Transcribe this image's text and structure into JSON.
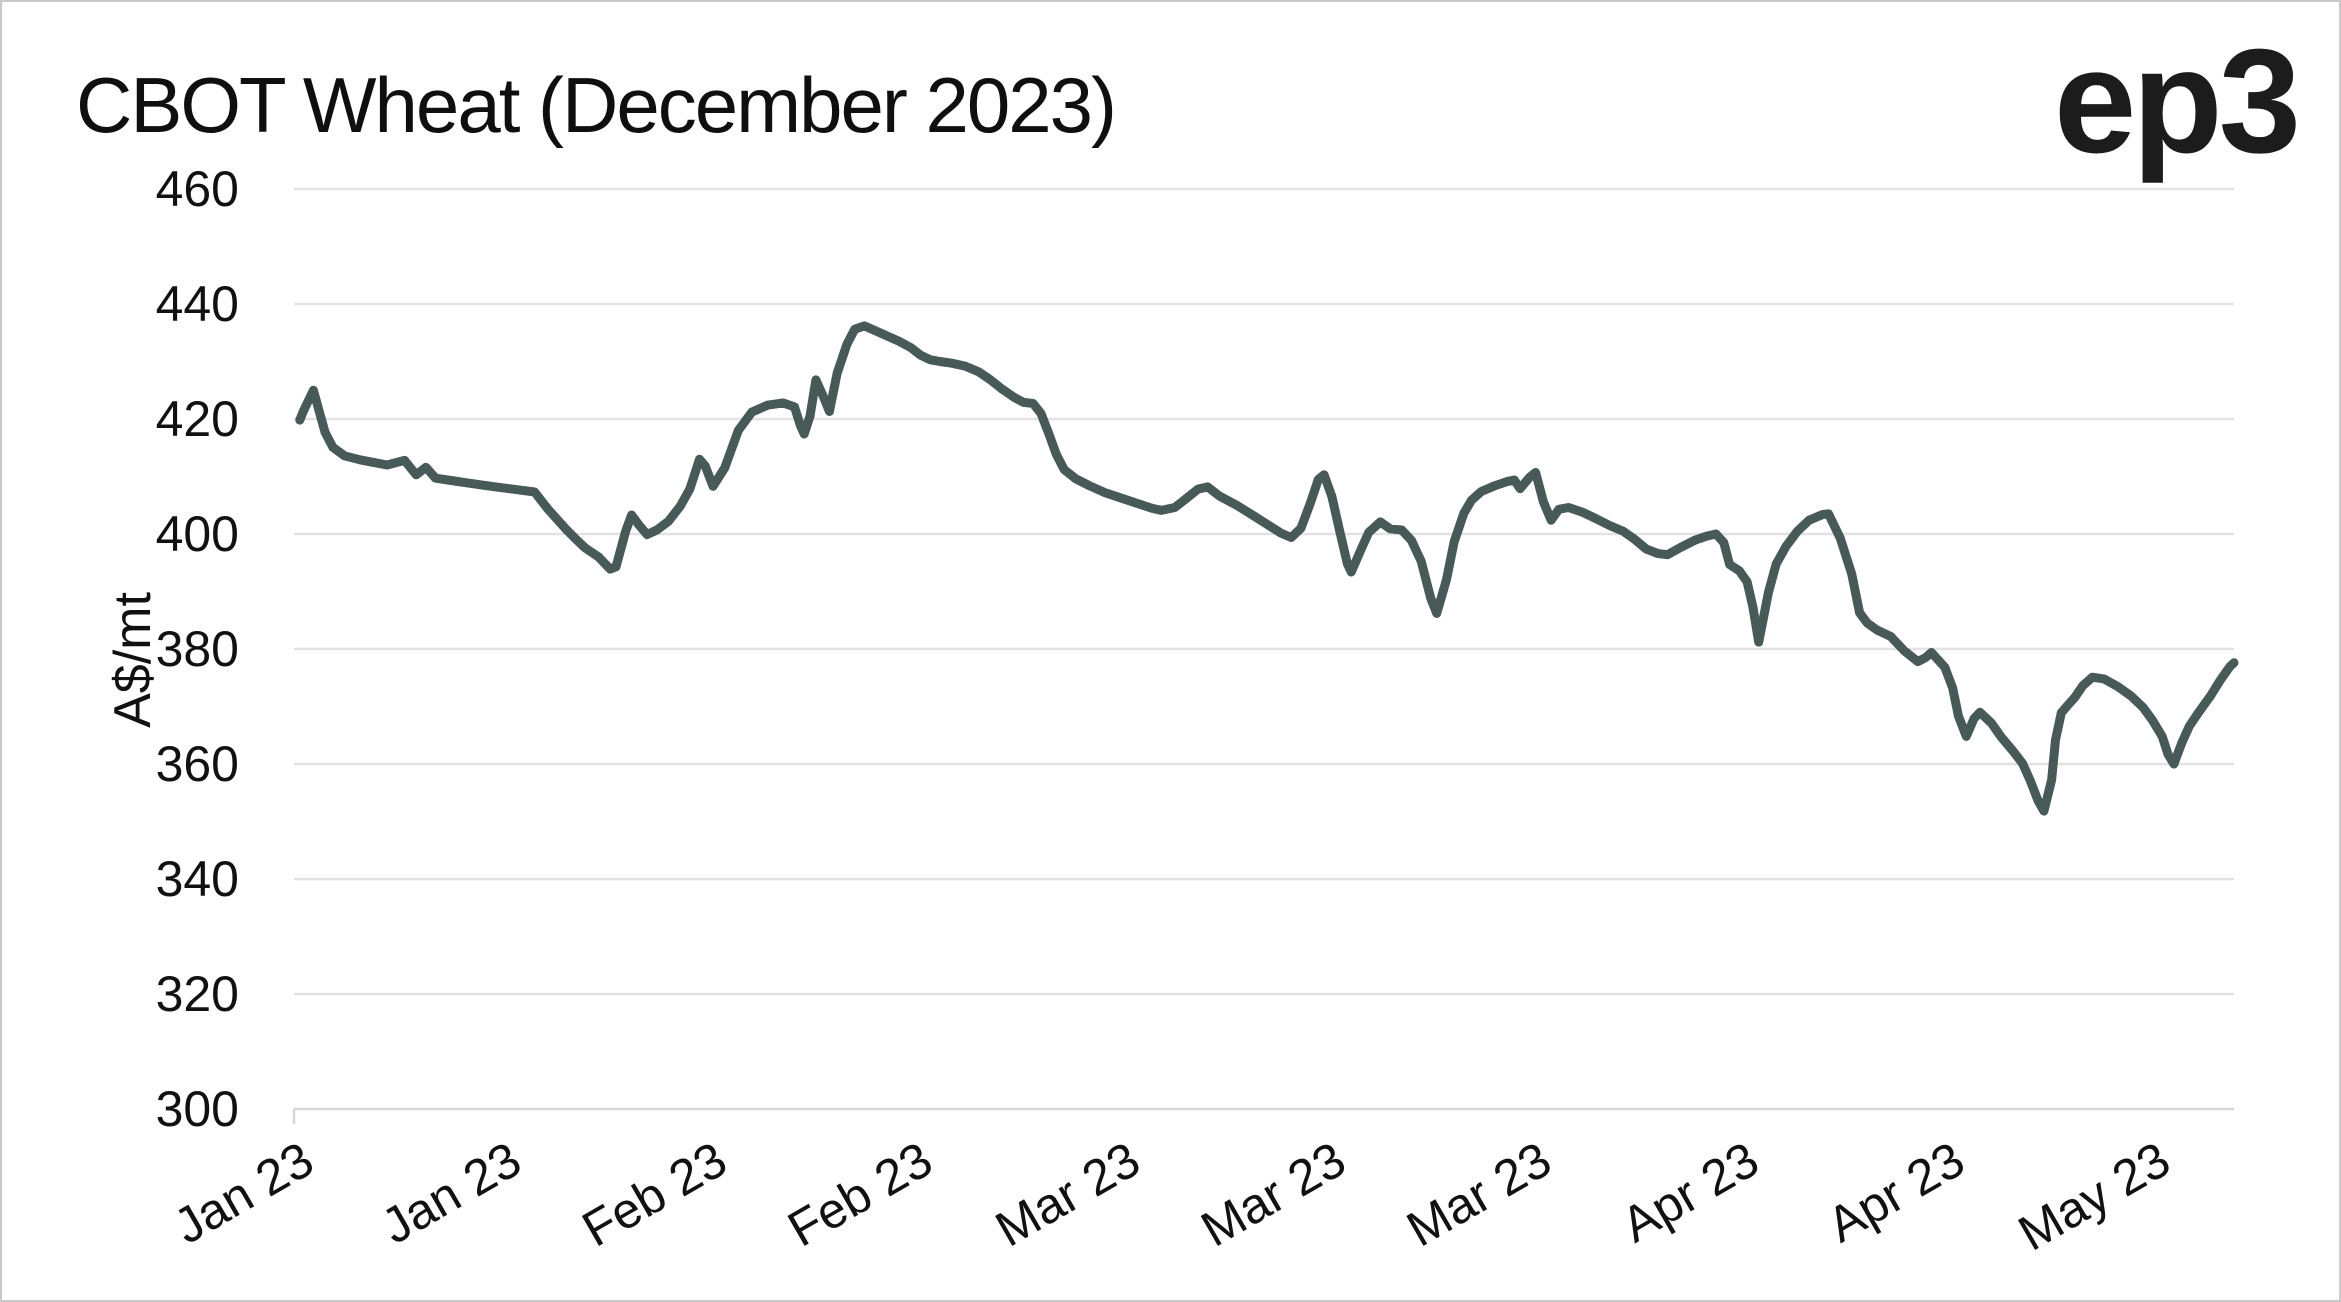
{
  "title": "CBOT Wheat (December 2023)",
  "logo_text": "ep3",
  "colors": {
    "line": "#475a58",
    "grid": "#e2e2e2",
    "axis": "#d6d6d6",
    "text": "#111111",
    "title_text": "#0f0f0f",
    "logo_text": "#1c1c1c",
    "background": "#ffffff",
    "frame": "#c9c9c9"
  },
  "chart_data": {
    "type": "line",
    "title": "CBOT Wheat (December 2023)",
    "xlabel": "",
    "ylabel": "A$/mt",
    "ylim": [
      300,
      460
    ],
    "y_ticks": [
      300,
      320,
      340,
      360,
      380,
      400,
      420,
      440,
      460
    ],
    "grid": "horizontal only",
    "legend": "none",
    "x_axis": {
      "tick_labels": [
        "Jan 23",
        "Jan 23",
        "Feb 23",
        "Feb 23",
        "Mar 23",
        "Mar 23",
        "Mar 23",
        "Apr 23",
        "Apr 23",
        "May 23"
      ],
      "tick_positions_pct": [
        1.5,
        12.2,
        22.8,
        33.4,
        44.1,
        54.7,
        65.3,
        76.0,
        86.6,
        97.2
      ],
      "label_rotation_deg": -30
    },
    "series": [
      {
        "name": "CBOT Wheat December 2023 price (A$/mt)",
        "points_format": "[x percent across plot, value A$/mt]",
        "points": [
          [
            0.3,
            419.8
          ],
          [
            0.5,
            421.5
          ],
          [
            1.0,
            425.0
          ],
          [
            1.6,
            417.7
          ],
          [
            2.0,
            415.1
          ],
          [
            2.6,
            413.6
          ],
          [
            3.4,
            412.9
          ],
          [
            4.0,
            412.5
          ],
          [
            4.8,
            412.0
          ],
          [
            5.7,
            412.8
          ],
          [
            6.3,
            410.3
          ],
          [
            6.8,
            411.6
          ],
          [
            7.3,
            409.7
          ],
          [
            8.1,
            409.3
          ],
          [
            8.9,
            408.9
          ],
          [
            9.7,
            408.5
          ],
          [
            10.6,
            408.1
          ],
          [
            11.5,
            407.7
          ],
          [
            12.4,
            407.3
          ],
          [
            13.1,
            404.3
          ],
          [
            14.0,
            400.9
          ],
          [
            14.5,
            399.2
          ],
          [
            15.0,
            397.6
          ],
          [
            15.7,
            396.0
          ],
          [
            16.3,
            393.9
          ],
          [
            16.6,
            394.3
          ],
          [
            17.1,
            400.5
          ],
          [
            17.4,
            403.3
          ],
          [
            17.8,
            401.5
          ],
          [
            18.2,
            399.9
          ],
          [
            18.7,
            400.7
          ],
          [
            19.3,
            402.2
          ],
          [
            19.9,
            404.8
          ],
          [
            20.4,
            407.8
          ],
          [
            20.9,
            413.0
          ],
          [
            21.2,
            411.8
          ],
          [
            21.6,
            408.3
          ],
          [
            22.2,
            411.5
          ],
          [
            22.9,
            418.0
          ],
          [
            23.6,
            421.2
          ],
          [
            24.4,
            422.4
          ],
          [
            25.2,
            422.8
          ],
          [
            25.8,
            422.1
          ],
          [
            26.1,
            418.9
          ],
          [
            26.3,
            417.4
          ],
          [
            26.6,
            420.5
          ],
          [
            26.9,
            426.8
          ],
          [
            27.3,
            423.8
          ],
          [
            27.6,
            421.3
          ],
          [
            28.0,
            428.0
          ],
          [
            28.5,
            433.0
          ],
          [
            28.9,
            435.6
          ],
          [
            29.4,
            436.2
          ],
          [
            30.0,
            435.3
          ],
          [
            30.6,
            434.4
          ],
          [
            31.2,
            433.5
          ],
          [
            31.8,
            432.4
          ],
          [
            32.3,
            431.1
          ],
          [
            32.8,
            430.3
          ],
          [
            33.3,
            430.0
          ],
          [
            33.9,
            429.7
          ],
          [
            34.6,
            429.2
          ],
          [
            35.3,
            428.2
          ],
          [
            35.9,
            426.8
          ],
          [
            36.5,
            425.2
          ],
          [
            37.1,
            423.8
          ],
          [
            37.6,
            422.9
          ],
          [
            38.1,
            422.7
          ],
          [
            38.5,
            421.0
          ],
          [
            38.9,
            417.5
          ],
          [
            39.3,
            413.8
          ],
          [
            39.7,
            411.2
          ],
          [
            40.3,
            409.6
          ],
          [
            41.0,
            408.4
          ],
          [
            41.8,
            407.2
          ],
          [
            42.6,
            406.3
          ],
          [
            43.4,
            405.4
          ],
          [
            44.2,
            404.5
          ],
          [
            44.7,
            404.1
          ],
          [
            45.4,
            404.6
          ],
          [
            46.0,
            406.2
          ],
          [
            46.6,
            407.8
          ],
          [
            47.1,
            408.2
          ],
          [
            47.7,
            406.6
          ],
          [
            48.6,
            405.0
          ],
          [
            49.4,
            403.3
          ],
          [
            50.2,
            401.6
          ],
          [
            50.9,
            400.1
          ],
          [
            51.4,
            399.4
          ],
          [
            51.9,
            401.0
          ],
          [
            52.4,
            405.5
          ],
          [
            52.8,
            409.5
          ],
          [
            53.1,
            410.3
          ],
          [
            53.5,
            406.5
          ],
          [
            53.9,
            400.5
          ],
          [
            54.3,
            394.8
          ],
          [
            54.5,
            393.4
          ],
          [
            55.0,
            397.3
          ],
          [
            55.4,
            400.3
          ],
          [
            56.0,
            402.1
          ],
          [
            56.5,
            400.9
          ],
          [
            57.1,
            400.7
          ],
          [
            57.6,
            398.9
          ],
          [
            58.1,
            395.3
          ],
          [
            58.6,
            388.8
          ],
          [
            58.9,
            386.2
          ],
          [
            59.4,
            392.0
          ],
          [
            59.8,
            398.6
          ],
          [
            60.3,
            403.6
          ],
          [
            60.7,
            405.9
          ],
          [
            61.2,
            407.4
          ],
          [
            61.9,
            408.4
          ],
          [
            62.5,
            409.1
          ],
          [
            62.9,
            409.4
          ],
          [
            63.2,
            407.9
          ],
          [
            63.7,
            409.9
          ],
          [
            64.0,
            410.7
          ],
          [
            64.4,
            405.6
          ],
          [
            64.8,
            402.4
          ],
          [
            65.2,
            404.3
          ],
          [
            65.7,
            404.6
          ],
          [
            66.4,
            403.8
          ],
          [
            67.1,
            402.7
          ],
          [
            67.8,
            401.5
          ],
          [
            68.5,
            400.5
          ],
          [
            69.1,
            399.1
          ],
          [
            69.7,
            397.4
          ],
          [
            70.3,
            396.6
          ],
          [
            70.8,
            396.4
          ],
          [
            71.5,
            397.7
          ],
          [
            72.2,
            398.9
          ],
          [
            72.8,
            399.6
          ],
          [
            73.3,
            400.0
          ],
          [
            73.7,
            398.5
          ],
          [
            74.0,
            394.7
          ],
          [
            74.5,
            393.6
          ],
          [
            74.9,
            391.7
          ],
          [
            75.2,
            387.3
          ],
          [
            75.5,
            381.2
          ],
          [
            76.0,
            389.8
          ],
          [
            76.4,
            394.8
          ],
          [
            76.9,
            397.8
          ],
          [
            77.5,
            400.5
          ],
          [
            78.1,
            402.4
          ],
          [
            78.8,
            403.4
          ],
          [
            79.1,
            403.5
          ],
          [
            79.7,
            399.3
          ],
          [
            80.3,
            393.0
          ],
          [
            80.7,
            386.3
          ],
          [
            81.1,
            384.5
          ],
          [
            81.6,
            383.3
          ],
          [
            82.3,
            382.2
          ],
          [
            83.0,
            379.7
          ],
          [
            83.7,
            377.8
          ],
          [
            84.1,
            378.5
          ],
          [
            84.4,
            379.4
          ],
          [
            85.1,
            376.8
          ],
          [
            85.5,
            373.2
          ],
          [
            85.8,
            368.3
          ],
          [
            86.2,
            364.8
          ],
          [
            86.6,
            367.9
          ],
          [
            86.9,
            369.0
          ],
          [
            87.5,
            367.1
          ],
          [
            88.0,
            364.7
          ],
          [
            88.6,
            362.3
          ],
          [
            89.1,
            360.1
          ],
          [
            89.5,
            357.1
          ],
          [
            89.9,
            353.6
          ],
          [
            90.2,
            351.8
          ],
          [
            90.6,
            357.2
          ],
          [
            90.8,
            364.2
          ],
          [
            91.1,
            368.9
          ],
          [
            91.4,
            370.1
          ],
          [
            91.8,
            371.6
          ],
          [
            92.2,
            373.6
          ],
          [
            92.7,
            375.1
          ],
          [
            93.3,
            374.8
          ],
          [
            94.0,
            373.5
          ],
          [
            94.7,
            371.8
          ],
          [
            95.3,
            369.9
          ],
          [
            95.8,
            367.6
          ],
          [
            96.3,
            364.8
          ],
          [
            96.6,
            361.7
          ],
          [
            96.9,
            360.0
          ],
          [
            97.3,
            363.6
          ],
          [
            97.7,
            366.6
          ],
          [
            98.2,
            369.1
          ],
          [
            98.8,
            371.9
          ],
          [
            99.3,
            374.6
          ],
          [
            99.8,
            377.0
          ],
          [
            100.0,
            377.6
          ]
        ]
      }
    ]
  }
}
